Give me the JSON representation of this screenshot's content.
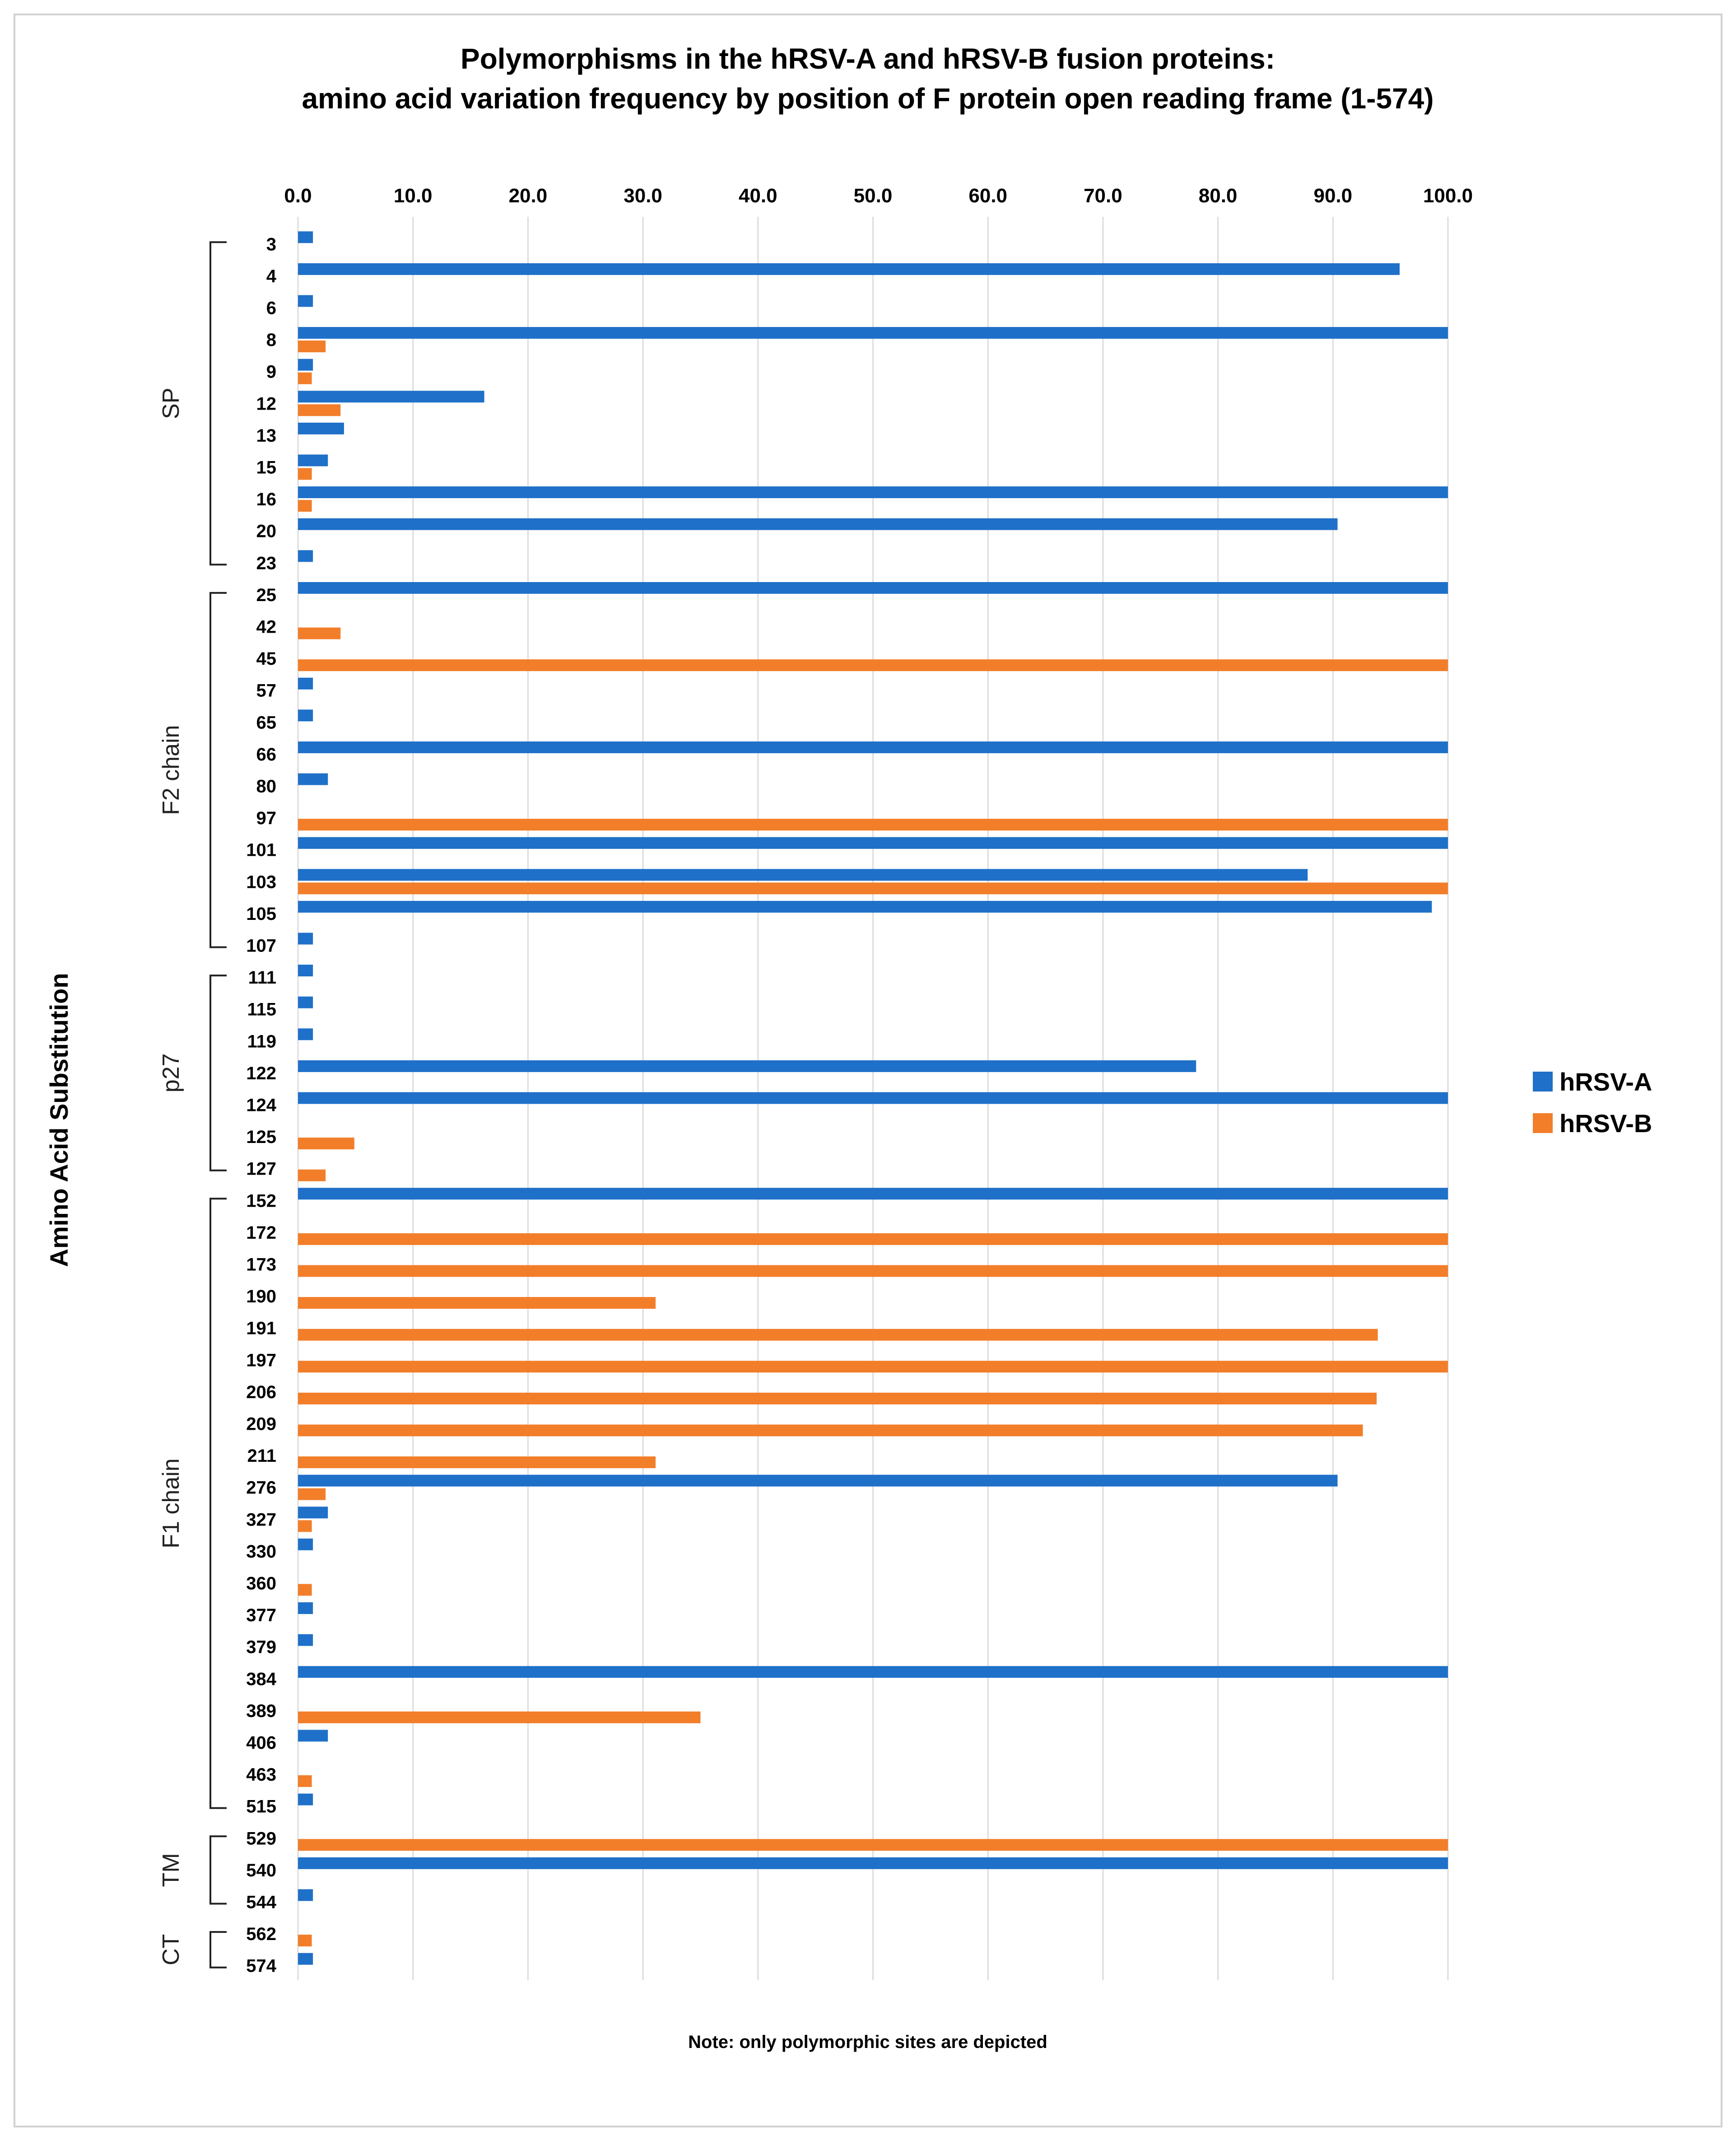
{
  "chart_data": {
    "type": "bar",
    "orientation": "horizontal",
    "title": "Polymorphisms in the hRSV-A and hRSV-B fusion proteins:",
    "subtitle": "amino acid variation frequency by position of F protein open reading frame (1-574)",
    "ylabel": "Amino Acid Substitution",
    "xlabel": "",
    "xlim": [
      0,
      100
    ],
    "xticks": [
      "0.0",
      "10.0",
      "20.0",
      "30.0",
      "40.0",
      "50.0",
      "60.0",
      "70.0",
      "80.0",
      "90.0",
      "100.0"
    ],
    "grid": true,
    "legend_position": "right",
    "note": "Note: only polymorphic sites are depicted",
    "categories": [
      "3",
      "4",
      "6",
      "8",
      "9",
      "12",
      "13",
      "15",
      "16",
      "20",
      "23",
      "25",
      "42",
      "45",
      "57",
      "65",
      "66",
      "80",
      "97",
      "101",
      "103",
      "105",
      "107",
      "111",
      "115",
      "119",
      "122",
      "124",
      "125",
      "127",
      "152",
      "172",
      "173",
      "190",
      "191",
      "197",
      "206",
      "209",
      "211",
      "276",
      "327",
      "330",
      "360",
      "377",
      "379",
      "384",
      "389",
      "406",
      "463",
      "515",
      "529",
      "540",
      "544",
      "562",
      "574"
    ],
    "series": [
      {
        "name": "hRSV-A",
        "color": "#1f70c8",
        "values": [
          1.3,
          95.8,
          1.3,
          100,
          1.3,
          16.2,
          4.0,
          2.6,
          100,
          90.4,
          1.3,
          100,
          0,
          0,
          1.3,
          1.3,
          100,
          2.6,
          0,
          100,
          87.8,
          98.6,
          1.3,
          1.3,
          1.3,
          1.3,
          78.1,
          100,
          0,
          0,
          100,
          0,
          0,
          0,
          0,
          0,
          0,
          0,
          0,
          90.4,
          2.6,
          1.3,
          0,
          1.3,
          1.3,
          100,
          0,
          2.6,
          0,
          1.3,
          0,
          100,
          1.3,
          0,
          1.3
        ]
      },
      {
        "name": "hRSV-B",
        "color": "#f27e2a",
        "values": [
          0,
          0,
          0,
          2.4,
          1.2,
          3.7,
          0,
          1.2,
          1.2,
          0,
          0,
          0,
          3.7,
          100,
          0,
          0,
          0,
          0,
          100,
          0,
          100,
          0,
          0,
          0,
          0,
          0,
          0,
          0,
          4.9,
          2.4,
          0,
          100,
          100,
          31.1,
          93.9,
          100,
          93.8,
          92.6,
          31.1,
          2.4,
          1.2,
          0,
          1.2,
          0,
          0,
          0,
          35.0,
          0,
          1.2,
          0,
          100,
          0,
          0,
          1.2,
          0
        ]
      }
    ],
    "regions": [
      {
        "label": "SP",
        "first": "3",
        "last": "23"
      },
      {
        "label": "F2 chain",
        "first": "25",
        "last": "107"
      },
      {
        "label": "p27",
        "first": "111",
        "last": "127"
      },
      {
        "label": "F1 chain",
        "first": "152",
        "last": "515"
      },
      {
        "label": "TM",
        "first": "529",
        "last": "544"
      },
      {
        "label": "CT",
        "first": "562",
        "last": "574"
      }
    ]
  }
}
